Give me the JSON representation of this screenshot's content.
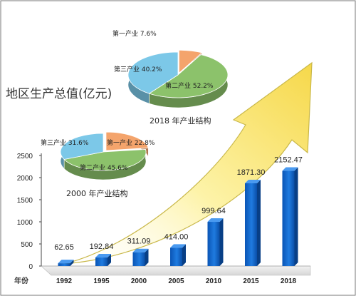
{
  "chart_data": [
    {
      "type": "bar",
      "title": "地区生产总值(亿元)",
      "xlabel": "年份",
      "ylabel": "",
      "categories": [
        "1992",
        "1995",
        "2000",
        "2005",
        "2010",
        "2015",
        "2018"
      ],
      "values": [
        62.65,
        192.84,
        311.09,
        414.0,
        999.64,
        1871.3,
        2152.47
      ],
      "data_labels": [
        "62.65",
        "192.84",
        "311.09",
        "414.00",
        "999.64",
        "1871.30",
        "2152.47"
      ],
      "yticks": [
        "0",
        "500",
        "1000",
        "1500",
        "2000",
        "2500"
      ],
      "ylim": [
        0,
        2500
      ],
      "grid": false,
      "legend": "none"
    },
    {
      "type": "pie",
      "title": "2000 年产业结构",
      "slices": [
        {
          "label": "第一产业",
          "value": 22.8,
          "text": "第一产业 22.8%",
          "color": "#f4a46c"
        },
        {
          "label": "第二产业",
          "value": 45.6,
          "text": "第二产业 45.6%",
          "color": "#8cc26b"
        },
        {
          "label": "第三产业",
          "value": 31.6,
          "text": "第三产业 31.6%",
          "color": "#7cc8e8"
        }
      ]
    },
    {
      "type": "pie",
      "title": "2018 年产业结构",
      "slices": [
        {
          "label": "第一产业",
          "value": 7.6,
          "text": "第一产业 7.6%",
          "color": "#f4a46c"
        },
        {
          "label": "第二产业",
          "value": 52.2,
          "text": "第二产业 52.2%",
          "color": "#8cc26b"
        },
        {
          "label": "第三产业",
          "value": 40.2,
          "text": "第三产业 40.2%",
          "color": "#7cc8e8"
        }
      ]
    }
  ]
}
